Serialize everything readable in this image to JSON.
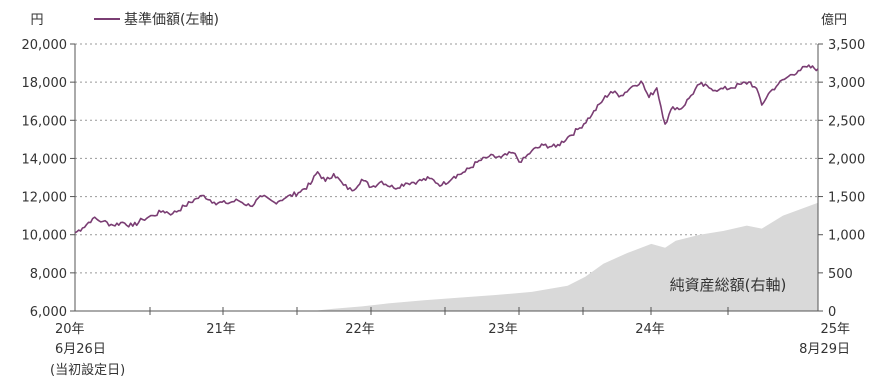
{
  "chart_data": {
    "type": "line",
    "left_axis": {
      "unit": "円",
      "ticks": [
        "20,000",
        "18,000",
        "16,000",
        "14,000",
        "12,000",
        "10,000",
        "8,000",
        "6,000"
      ],
      "range": [
        6000,
        20000
      ]
    },
    "right_axis": {
      "unit": "億円",
      "ticks": [
        "3,500",
        "3,000",
        "2,500",
        "2,000",
        "1,500",
        "1,000",
        "500",
        "0"
      ],
      "range": [
        0,
        3500
      ]
    },
    "x_axis": {
      "ticks": [
        {
          "line1": "20年",
          "line2": "6月26日",
          "line3": "(当初設定日)"
        },
        {
          "line1": "21年",
          "line2": "",
          "line3": ""
        },
        {
          "line1": "22年",
          "line2": "",
          "line3": ""
        },
        {
          "line1": "23年",
          "line2": "",
          "line3": ""
        },
        {
          "line1": "24年",
          "line2": "",
          "line3": ""
        },
        {
          "line1": "25年",
          "line2": "8月29日",
          "line3": ""
        }
      ]
    },
    "legend": {
      "line_label": "基準価額(左軸)",
      "position": "top-left"
    },
    "area_label": "純資産総額(右軸)",
    "colors": {
      "line": "#7a3d73",
      "area": "#d9d9d9",
      "grid": "#999999"
    },
    "grid": "horizontal-dotted",
    "series": [
      {
        "name": "基準価額(左軸)",
        "type": "line",
        "axis": "left",
        "points": [
          [
            "2020-06-26",
            10100
          ],
          [
            "2020-07-15",
            10350
          ],
          [
            "2020-08-10",
            10850
          ],
          [
            "2020-09-05",
            10700
          ],
          [
            "2020-10-01",
            10500
          ],
          [
            "2020-10-25",
            10650
          ],
          [
            "2020-11-20",
            10450
          ],
          [
            "2020-12-15",
            10800
          ],
          [
            "2021-01-10",
            11000
          ],
          [
            "2021-02-05",
            11250
          ],
          [
            "2021-03-01",
            11100
          ],
          [
            "2021-04-01",
            11500
          ],
          [
            "2021-05-01",
            11900
          ],
          [
            "2021-05-20",
            12050
          ],
          [
            "2021-06-15",
            11700
          ],
          [
            "2021-07-15",
            11650
          ],
          [
            "2021-08-15",
            11800
          ],
          [
            "2021-09-15",
            11500
          ],
          [
            "2021-10-15",
            12000
          ],
          [
            "2021-11-15",
            11700
          ],
          [
            "2021-12-15",
            11950
          ],
          [
            "2022-01-15",
            12200
          ],
          [
            "2022-02-15",
            12650
          ],
          [
            "2022-03-05",
            13300
          ],
          [
            "2022-03-25",
            12800
          ],
          [
            "2022-04-15",
            13200
          ],
          [
            "2022-05-10",
            12600
          ],
          [
            "2022-06-01",
            12300
          ],
          [
            "2022-06-25",
            12900
          ],
          [
            "2022-07-20",
            12500
          ],
          [
            "2022-08-15",
            12800
          ],
          [
            "2022-09-15",
            12450
          ],
          [
            "2022-10-15",
            12700
          ],
          [
            "2022-11-15",
            12800
          ],
          [
            "2022-12-15",
            12950
          ],
          [
            "2023-01-15",
            12600
          ],
          [
            "2023-02-15",
            13050
          ],
          [
            "2023-03-15",
            13300
          ],
          [
            "2023-04-15",
            13800
          ],
          [
            "2023-05-15",
            14100
          ],
          [
            "2023-06-15",
            14050
          ],
          [
            "2023-07-15",
            14300
          ],
          [
            "2023-08-05",
            13800
          ],
          [
            "2023-09-01",
            14400
          ],
          [
            "2023-10-01",
            14700
          ],
          [
            "2023-11-01",
            14600
          ],
          [
            "2023-12-01",
            15100
          ],
          [
            "2024-01-01",
            15600
          ],
          [
            "2024-02-01",
            16300
          ],
          [
            "2024-03-01",
            17100
          ],
          [
            "2024-03-20",
            17500
          ],
          [
            "2024-04-15",
            17300
          ],
          [
            "2024-05-15",
            17800
          ],
          [
            "2024-06-05",
            18050
          ],
          [
            "2024-06-25",
            17200
          ],
          [
            "2024-07-15",
            17700
          ],
          [
            "2024-08-05",
            15800
          ],
          [
            "2024-08-25",
            16700
          ],
          [
            "2024-09-15",
            16600
          ],
          [
            "2024-10-10",
            17300
          ],
          [
            "2024-11-01",
            17900
          ],
          [
            "2024-11-25",
            17700
          ],
          [
            "2024-12-20",
            17600
          ],
          [
            "2025-01-20",
            17700
          ],
          [
            "2025-02-15",
            17900
          ],
          [
            "2025-03-10",
            18000
          ],
          [
            "2025-03-31",
            17400
          ],
          [
            "2025-04-08",
            16800
          ],
          [
            "2025-04-25",
            17400
          ],
          [
            "2025-05-20",
            17900
          ],
          [
            "2025-06-15",
            18300
          ],
          [
            "2025-07-10",
            18600
          ],
          [
            "2025-08-01",
            18800
          ],
          [
            "2025-08-29",
            18700
          ]
        ]
      },
      {
        "name": "純資産総額(右軸)",
        "type": "area",
        "axis": "right",
        "points": [
          [
            "2020-06-26",
            0
          ],
          [
            "2021-06-26",
            1
          ],
          [
            "2022-03-01",
            5
          ],
          [
            "2022-04-15",
            30
          ],
          [
            "2022-06-26",
            60
          ],
          [
            "2022-09-01",
            100
          ],
          [
            "2022-12-01",
            140
          ],
          [
            "2023-03-01",
            175
          ],
          [
            "2023-06-01",
            210
          ],
          [
            "2023-09-01",
            250
          ],
          [
            "2023-12-01",
            330
          ],
          [
            "2024-01-15",
            450
          ],
          [
            "2024-03-01",
            620
          ],
          [
            "2024-05-01",
            760
          ],
          [
            "2024-07-01",
            880
          ],
          [
            "2024-08-05",
            830
          ],
          [
            "2024-09-01",
            920
          ],
          [
            "2024-11-01",
            1000
          ],
          [
            "2025-01-01",
            1050
          ],
          [
            "2025-03-01",
            1120
          ],
          [
            "2025-04-08",
            1080
          ],
          [
            "2025-06-01",
            1250
          ],
          [
            "2025-08-29",
            1420
          ]
        ]
      }
    ]
  }
}
